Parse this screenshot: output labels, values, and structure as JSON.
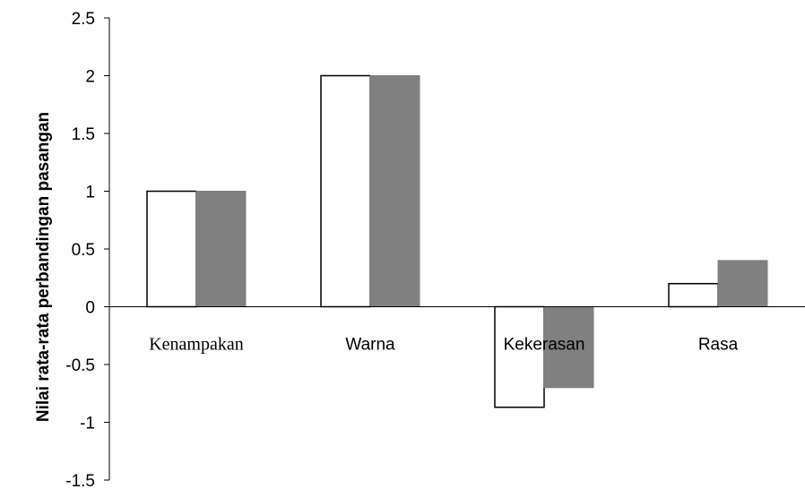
{
  "chart_data": {
    "type": "bar",
    "categories": [
      "Kenampakan",
      "Warna",
      "Kekerasan",
      "Rasa"
    ],
    "series": [
      {
        "values": [
          1.0,
          2.0,
          -0.87,
          0.2
        ],
        "color": "#ffffff",
        "stroke": "#000000"
      },
      {
        "values": [
          1.0,
          2.0,
          -0.7,
          0.4
        ],
        "color": "#808080",
        "stroke": "#808080"
      }
    ],
    "title": "",
    "xlabel": "",
    "ylabel": "Nilai rata-rata perbandingan pasangan",
    "ylim": [
      -1.5,
      2.5
    ],
    "yticks": [
      "2.5",
      "2",
      "1.5",
      "1",
      "0.5",
      "0",
      "-0.5",
      "-1",
      "-1.5"
    ],
    "grid": false,
    "legend": "none"
  }
}
